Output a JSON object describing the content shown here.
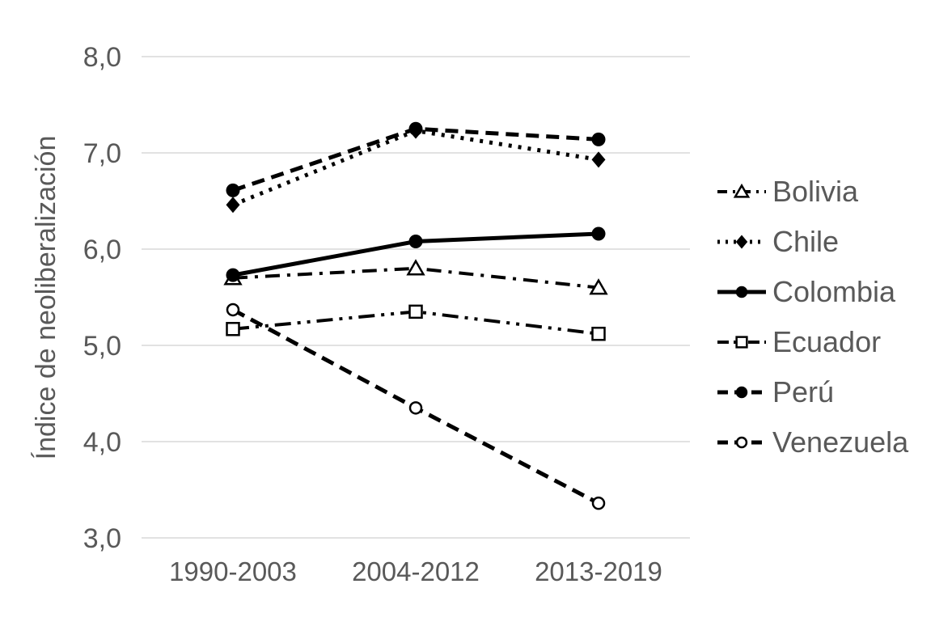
{
  "chart_data": {
    "type": "line",
    "title": "",
    "xlabel": "",
    "ylabel": "Índice de neoliberalización",
    "categories": [
      "1990-2003",
      "2004-2012",
      "2013-2019"
    ],
    "series": [
      {
        "name": "Bolivia",
        "values": [
          5.7,
          5.8,
          5.6
        ],
        "line_style": "dash-dot",
        "marker": "triangle-open"
      },
      {
        "name": "Chile",
        "values": [
          6.46,
          7.23,
          6.93
        ],
        "line_style": "dotted",
        "marker": "diamond-filled"
      },
      {
        "name": "Colombia",
        "values": [
          5.73,
          6.08,
          6.16
        ],
        "line_style": "solid",
        "marker": "circle-filled"
      },
      {
        "name": "Ecuador",
        "values": [
          5.17,
          5.35,
          5.12
        ],
        "line_style": "dash-dot-dot",
        "marker": "square-open"
      },
      {
        "name": "Perú",
        "values": [
          6.61,
          7.25,
          7.14
        ],
        "line_style": "dashed",
        "marker": "circle-filled"
      },
      {
        "name": "Venezuela",
        "values": [
          5.37,
          4.35,
          3.36
        ],
        "line_style": "dashed",
        "marker": "circle-open"
      }
    ],
    "ylim": [
      3.0,
      8.0
    ],
    "yticks": [
      {
        "value": 8,
        "label": "8,0"
      },
      {
        "value": 7,
        "label": "7,0"
      },
      {
        "value": 6,
        "label": "6,0"
      },
      {
        "value": 5,
        "label": "5,0"
      },
      {
        "value": 4,
        "label": "4,0"
      },
      {
        "value": 3,
        "label": "3,0"
      }
    ],
    "grid": true,
    "legend_position": "right",
    "colors": {
      "line": "#000000",
      "text": "#595959",
      "gridline": "#d9d9d9",
      "background": "#ffffff",
      "marker_fill_open": "#ffffff"
    }
  }
}
